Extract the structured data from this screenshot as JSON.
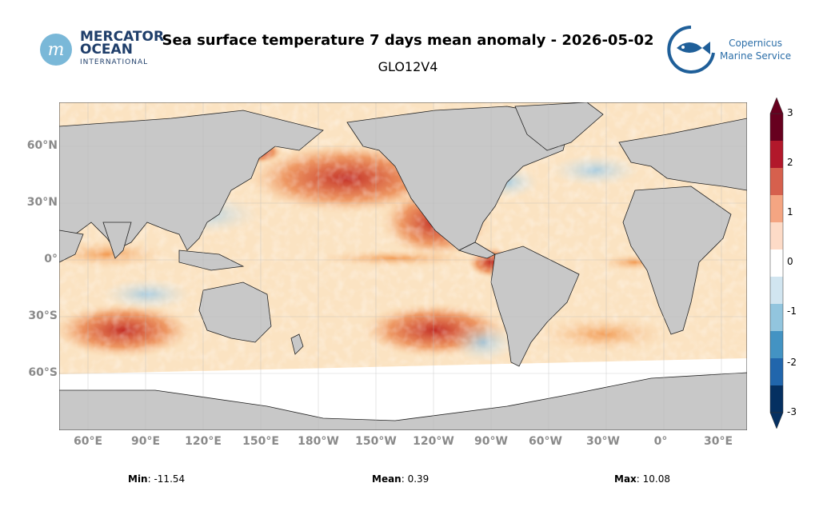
{
  "title": "Sea surface temperature 7 days mean anomaly - 2026-05-02",
  "subtitle": "GLO12V4",
  "logos": {
    "left": {
      "line1": "MERCATOR",
      "line2": "OCEAN",
      "line3": "INTERNATIONAL"
    },
    "right": {
      "line1": "Copernicus",
      "line2": "Marine Service"
    }
  },
  "map": {
    "lat_labels": [
      "60°N",
      "30°N",
      "0°",
      "30°S",
      "60°S"
    ],
    "lon_labels": [
      "60°E",
      "90°E",
      "120°E",
      "150°E",
      "180°W",
      "150°W",
      "120°W",
      "90°W",
      "60°W",
      "30°W",
      "0°",
      "30°E"
    ],
    "colors": {
      "land": "#c8c8c8",
      "warm": "#d7301f",
      "cool": "#2c7fb8"
    }
  },
  "colorbar": {
    "ticks": [
      "3",
      "2",
      "1",
      "0",
      "-1",
      "-2",
      "-3"
    ],
    "colors": [
      "#67001f",
      "#b2182b",
      "#d6604d",
      "#f4a582",
      "#fddbc7",
      "#ffffff",
      "#d1e5f0",
      "#92c5de",
      "#4393c3",
      "#2166ac",
      "#053061"
    ]
  },
  "stats": {
    "min_label": "Min",
    "min_value": ": -11.54",
    "mean_label": "Mean",
    "mean_value": ": 0.39",
    "max_label": "Max",
    "max_value": ": 10.08"
  }
}
